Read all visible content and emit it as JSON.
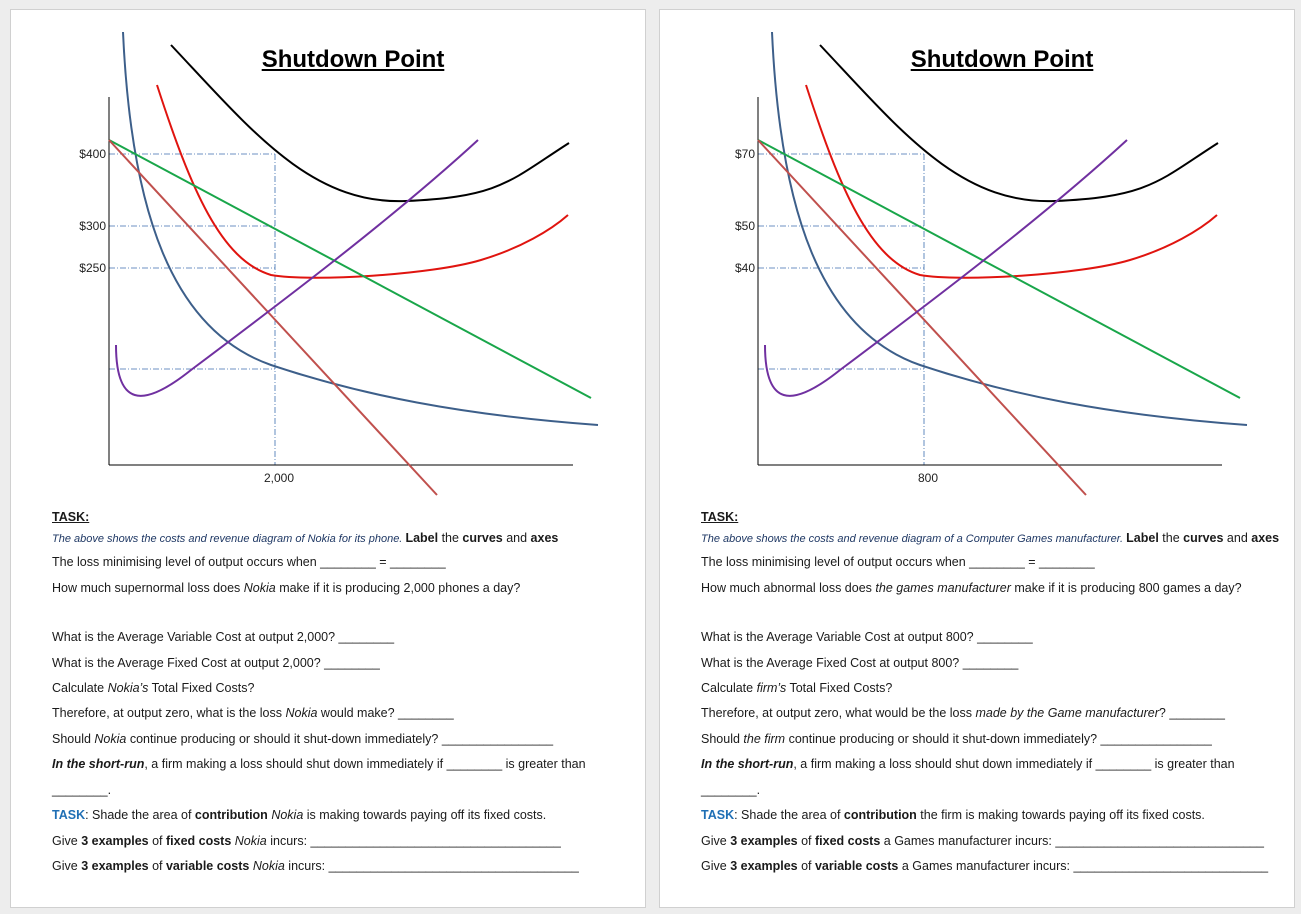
{
  "pages": [
    {
      "title": "Shutdown Point",
      "y_labels": [
        "$400",
        "$300",
        "$250"
      ],
      "x_labels": [
        "2,000"
      ],
      "lines": [
        [
          "TASK:"
        ],
        [
          "The above shows the costs and revenue diagram of Nokia for its phone. ",
          "Label",
          " the ",
          "curves",
          " and ",
          "axes"
        ],
        [
          "The loss minimising level of output occurs when ________ = ________"
        ],
        [
          "How much supernormal loss does ",
          "Nokia",
          " make if it is producing 2,000 phones a day?"
        ],
        [
          "What is the Average Variable Cost at output 2,000? ________"
        ],
        [
          "What is the Average Fixed Cost at output 2,000? ________"
        ],
        [
          "Calculate ",
          "Nokia’s",
          " Total Fixed Costs?"
        ],
        [
          "Therefore, at output zero, what is the loss ",
          "Nokia",
          " would make? ________"
        ],
        [
          "Should ",
          "Nokia",
          " continue producing or should it shut-down immediately? ________________"
        ],
        [
          "In the short-run",
          ", a firm making a loss should shut down immediately if ________ is greater than"
        ],
        [
          "________."
        ],
        [
          "TASK",
          ": Shade the area of ",
          "contribution",
          " ",
          "Nokia",
          " is making towards paying off its fixed costs."
        ],
        [
          "Give ",
          "3 examples",
          " of ",
          "fixed costs",
          " ",
          "Nokia",
          " incurs: ____________________________________"
        ],
        [
          "Give ",
          "3 examples",
          " of ",
          "variable costs",
          " ",
          "Nokia",
          " incurs: ____________________________________"
        ]
      ]
    },
    {
      "title": "Shutdown Point",
      "y_labels": [
        "$70",
        "$50",
        "$40"
      ],
      "x_labels": [
        "800"
      ],
      "lines": [
        [
          "TASK:"
        ],
        [
          "The above shows the costs and revenue diagram of a Computer Games manufacturer. ",
          "Label",
          " the ",
          "curves",
          " and ",
          "axes"
        ],
        [
          "The loss minimising level of output occurs when ________ = ________"
        ],
        [
          "How much abnormal loss does ",
          "the games manufacturer",
          " make if it is producing 800 games a day?"
        ],
        [
          "What is the Average Variable Cost at output 800? ________"
        ],
        [
          "What is the Average Fixed Cost at output 800? ________"
        ],
        [
          "Calculate ",
          "firm’s",
          " Total Fixed Costs?"
        ],
        [
          "Therefore, at output zero, what would be the loss ",
          "made by the Game manufacturer",
          "? ________"
        ],
        [
          "Should ",
          "the firm",
          " continue producing or should it shut-down immediately? ________________"
        ],
        [
          "In the short-run",
          ", a firm making a loss should shut down immediately if ________ is greater than"
        ],
        [
          "________."
        ],
        [
          "TASK",
          ": Shade the area of ",
          "contribution",
          " the firm is making towards paying off its fixed costs."
        ],
        [
          "Give ",
          "3 examples",
          " of ",
          "fixed costs",
          " a Games manufacturer incurs: ______________________________"
        ],
        [
          "Give ",
          "3 examples",
          " of ",
          "variable costs",
          " a Games manufacturer incurs: ____________________________"
        ]
      ]
    }
  ]
}
